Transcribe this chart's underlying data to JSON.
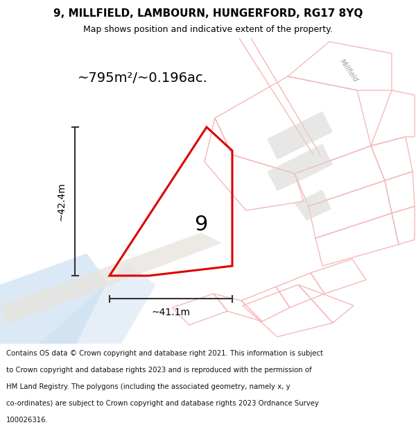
{
  "title_line1": "9, MILLFIELD, LAMBOURN, HUNGERFORD, RG17 8YQ",
  "title_line2": "Map shows position and indicative extent of the property.",
  "area_label": "~795m²/~0.196ac.",
  "width_label": "~41.1m",
  "height_label": "~42.4m",
  "plot_number": "9",
  "footer_lines": [
    "Contains OS data © Crown copyright and database right 2021. This information is subject",
    "to Crown copyright and database rights 2023 and is reproduced with the permission of",
    "HM Land Registry. The polygons (including the associated geometry, namely x, y",
    "co-ordinates) are subject to Crown copyright and database rights 2023 Ordnance Survey",
    "100026316."
  ],
  "map_bg": "#f0eeec",
  "red_plot_color": "#dd0000",
  "light_red": "#f5b8b8",
  "blue_river": "#c8ddf0",
  "gray_building": "#d8d5d0",
  "street_label": "Millfield",
  "figsize": [
    6.0,
    6.25
  ],
  "dpi": 100
}
